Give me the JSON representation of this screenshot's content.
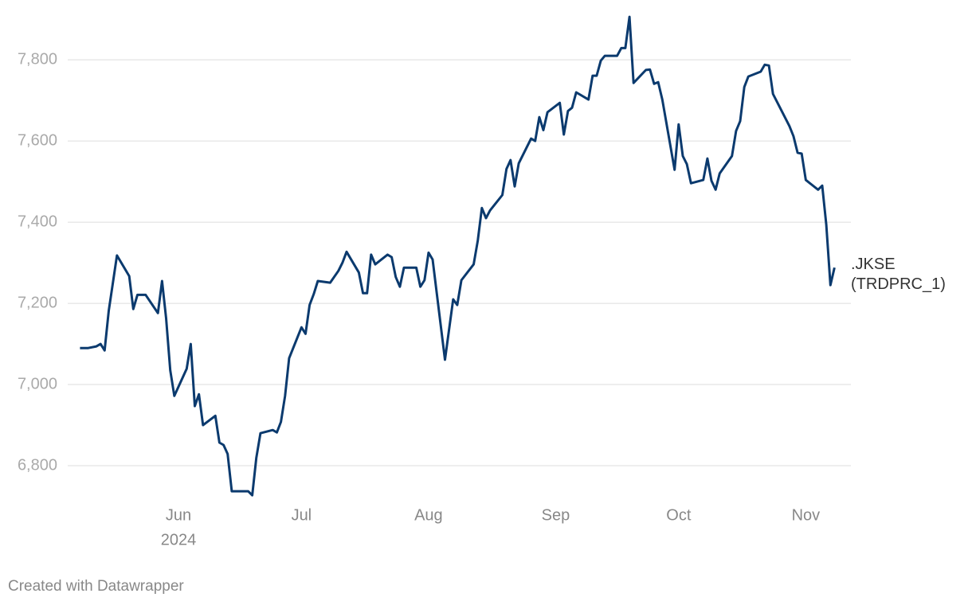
{
  "chart_data": {
    "type": "line",
    "x": [
      129,
      131,
      133,
      134,
      135,
      136,
      138,
      141,
      142,
      143,
      145,
      148,
      149,
      150,
      151,
      152,
      155,
      156,
      157,
      158,
      159,
      162,
      163,
      164,
      165,
      166,
      170,
      171,
      172,
      173,
      176,
      177,
      178,
      179,
      180,
      183,
      184,
      185,
      186,
      187,
      190,
      192,
      193,
      194,
      197,
      198,
      199,
      200,
      201,
      204,
      205,
      206,
      207,
      208,
      211,
      212,
      213,
      214,
      215,
      216,
      218,
      220,
      221,
      222,
      225,
      226,
      227,
      228,
      229,
      232,
      233,
      234,
      235,
      236,
      239,
      240,
      241,
      242,
      243,
      246,
      247,
      248,
      249,
      250,
      253,
      254,
      255,
      256,
      257,
      260,
      261,
      262,
      263,
      264,
      267,
      268,
      269,
      270,
      271,
      274,
      275,
      276,
      277,
      278,
      281,
      282,
      283,
      284,
      285,
      288,
      289,
      290,
      291,
      292,
      295,
      296,
      297,
      298,
      302,
      303,
      304,
      305,
      306,
      309,
      310,
      311,
      312,
      313
    ],
    "series": [
      {
        "name": ".JKSE (TRDPRC_1)",
        "color": "#0b3a6e",
        "values": [
          7090,
          7090,
          7094,
          7100,
          7084,
          7182,
          7318,
          7267,
          7186,
          7221,
          7221,
          7176,
          7255,
          7163,
          7035,
          6972,
          7039,
          7100,
          6947,
          6976,
          6900,
          6923,
          6857,
          6851,
          6829,
          6737,
          6737,
          6727,
          6819,
          6880,
          6888,
          6882,
          6908,
          6972,
          7065,
          7141,
          7125,
          7196,
          7223,
          7255,
          7251,
          7280,
          7300,
          7327,
          7276,
          7225,
          7225,
          7320,
          7296,
          7320,
          7314,
          7265,
          7241,
          7288,
          7288,
          7241,
          7257,
          7325,
          7308,
          7225,
          7061,
          7210,
          7196,
          7257,
          7296,
          7355,
          7435,
          7410,
          7429,
          7467,
          7531,
          7553,
          7488,
          7545,
          7606,
          7600,
          7659,
          7627,
          7671,
          7694,
          7616,
          7674,
          7682,
          7720,
          7702,
          7761,
          7761,
          7798,
          7810,
          7810,
          7829,
          7829,
          7906,
          7743,
          7775,
          7776,
          7741,
          7745,
          7702,
          7529,
          7641,
          7563,
          7543,
          7496,
          7504,
          7557,
          7502,
          7480,
          7520,
          7563,
          7625,
          7649,
          7733,
          7759,
          7771,
          7788,
          7786,
          7716,
          7637,
          7612,
          7571,
          7569,
          7504,
          7480,
          7490,
          7394,
          7245,
          7288
        ]
      }
    ],
    "xlim": [
      126,
      317
    ],
    "xticks": [
      {
        "value": 153,
        "label": "Jun"
      },
      {
        "value": 183,
        "label": "Jul"
      },
      {
        "value": 214,
        "label": "Aug"
      },
      {
        "value": 245,
        "label": "Sep"
      },
      {
        "value": 275,
        "label": "Oct"
      },
      {
        "value": 306,
        "label": "Nov"
      }
    ],
    "year_label": "2024",
    "ylim": [
      6700,
      7920
    ],
    "yticks": [
      {
        "value": 6800,
        "label": "6,800"
      },
      {
        "value": 7000,
        "label": "7,000"
      },
      {
        "value": 7200,
        "label": "7,200"
      },
      {
        "value": 7400,
        "label": "7,400"
      },
      {
        "value": 7600,
        "label": "7,600"
      },
      {
        "value": 7800,
        "label": "7,800"
      }
    ],
    "grid": true,
    "footer": "Created with Datawrapper"
  }
}
